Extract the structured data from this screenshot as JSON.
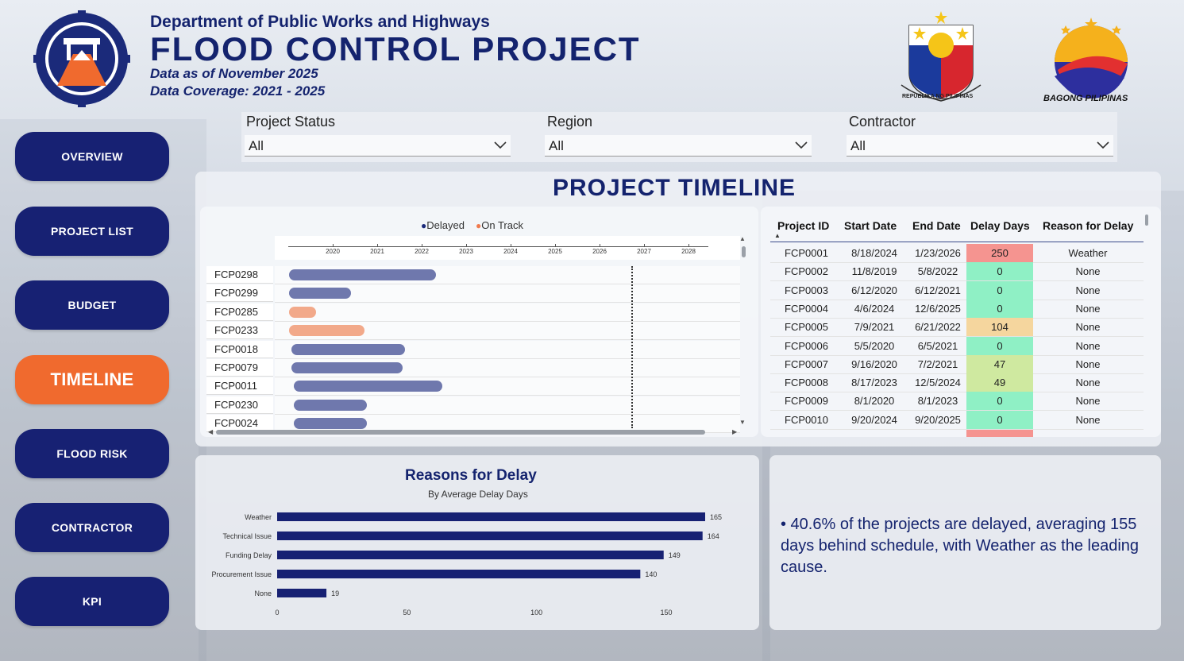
{
  "header": {
    "department": "Department of Public Works and Highways",
    "title": "FLOOD CONTROL PROJECT",
    "data_as_of": "Data as of November 2025",
    "coverage": "Data Coverage: 2021 - 2025",
    "brand_text": "BAGONG PILIPINAS",
    "seal_text": "REPUBLIKA NG PILIPINAS"
  },
  "nav": [
    {
      "label": "OVERVIEW",
      "active": false
    },
    {
      "label": "PROJECT LIST",
      "active": false
    },
    {
      "label": "BUDGET",
      "active": false
    },
    {
      "label": "TIMELINE",
      "active": true
    },
    {
      "label": "FLOOD RISK",
      "active": false
    },
    {
      "label": "CONTRACTOR",
      "active": false
    },
    {
      "label": "KPI",
      "active": false
    }
  ],
  "filters": [
    {
      "label": "Project Status",
      "value": "All"
    },
    {
      "label": "Region",
      "value": "All"
    },
    {
      "label": "Contractor",
      "value": "All"
    }
  ],
  "section_title": "PROJECT TIMELINE",
  "gantt": {
    "legend": {
      "delayed": "Delayed",
      "on_track": "On Track"
    },
    "years": [
      "2020",
      "2021",
      "2022",
      "2023",
      "2024",
      "2025",
      "2026",
      "2027",
      "2028"
    ],
    "rows": [
      {
        "id": "FCP0298",
        "start": 2020.0,
        "end": 2023.3,
        "status": "delayed"
      },
      {
        "id": "FCP0299",
        "start": 2020.0,
        "end": 2021.4,
        "status": "delayed"
      },
      {
        "id": "FCP0285",
        "start": 2020.0,
        "end": 2020.6,
        "status": "ontrack"
      },
      {
        "id": "FCP0233",
        "start": 2020.0,
        "end": 2021.7,
        "status": "ontrack"
      },
      {
        "id": "FCP0018",
        "start": 2020.05,
        "end": 2022.6,
        "status": "delayed"
      },
      {
        "id": "FCP0079",
        "start": 2020.05,
        "end": 2022.55,
        "status": "delayed"
      },
      {
        "id": "FCP0011",
        "start": 2020.1,
        "end": 2023.45,
        "status": "delayed"
      },
      {
        "id": "FCP0230",
        "start": 2020.1,
        "end": 2021.75,
        "status": "delayed"
      },
      {
        "id": "FCP0024",
        "start": 2020.1,
        "end": 2021.75,
        "status": "delayed"
      }
    ],
    "colors": {
      "delayed": "#6f78ad",
      "ontrack": "#f2a98a"
    }
  },
  "table": {
    "headers": [
      "Project ID",
      "Start Date",
      "End Date",
      "Delay Days",
      "Reason for Delay"
    ],
    "rows": [
      [
        "FCP0001",
        "8/18/2024",
        "1/23/2026",
        "250",
        "Weather"
      ],
      [
        "FCP0002",
        "11/8/2019",
        "5/8/2022",
        "0",
        "None"
      ],
      [
        "FCP0003",
        "6/12/2020",
        "6/12/2021",
        "0",
        "None"
      ],
      [
        "FCP0004",
        "4/6/2024",
        "12/6/2025",
        "0",
        "None"
      ],
      [
        "FCP0005",
        "7/9/2021",
        "6/21/2022",
        "104",
        "None"
      ],
      [
        "FCP0006",
        "5/5/2020",
        "6/5/2021",
        "0",
        "None"
      ],
      [
        "FCP0007",
        "9/16/2020",
        "7/2/2021",
        "47",
        "None"
      ],
      [
        "FCP0008",
        "8/17/2023",
        "12/5/2024",
        "49",
        "None"
      ],
      [
        "FCP0009",
        "8/1/2020",
        "8/1/2023",
        "0",
        "None"
      ],
      [
        "FCP0010",
        "9/20/2024",
        "9/20/2025",
        "0",
        "None"
      ]
    ],
    "delay_colors": {
      "250": "#f59490",
      "0": "#8ff0c5",
      "104": "#f5d69e",
      "47": "#cfe9a0",
      "49": "#cfe9a0"
    }
  },
  "chart_data": {
    "type": "bar",
    "title": "Reasons for Delay",
    "subtitle": "By Average Delay Days",
    "categories": [
      "Weather",
      "Technical Issue",
      "Funding Delay",
      "Procurement Issue",
      "None"
    ],
    "values": [
      165,
      164,
      149,
      140,
      19
    ],
    "xticks": [
      0,
      50,
      100,
      150
    ],
    "xlim": [
      0,
      165
    ],
    "orientation": "horizontal",
    "color": "#172173"
  },
  "insight": "• 40.6% of the projects are delayed, averaging 155 days behind schedule, with Weather as the leading cause."
}
